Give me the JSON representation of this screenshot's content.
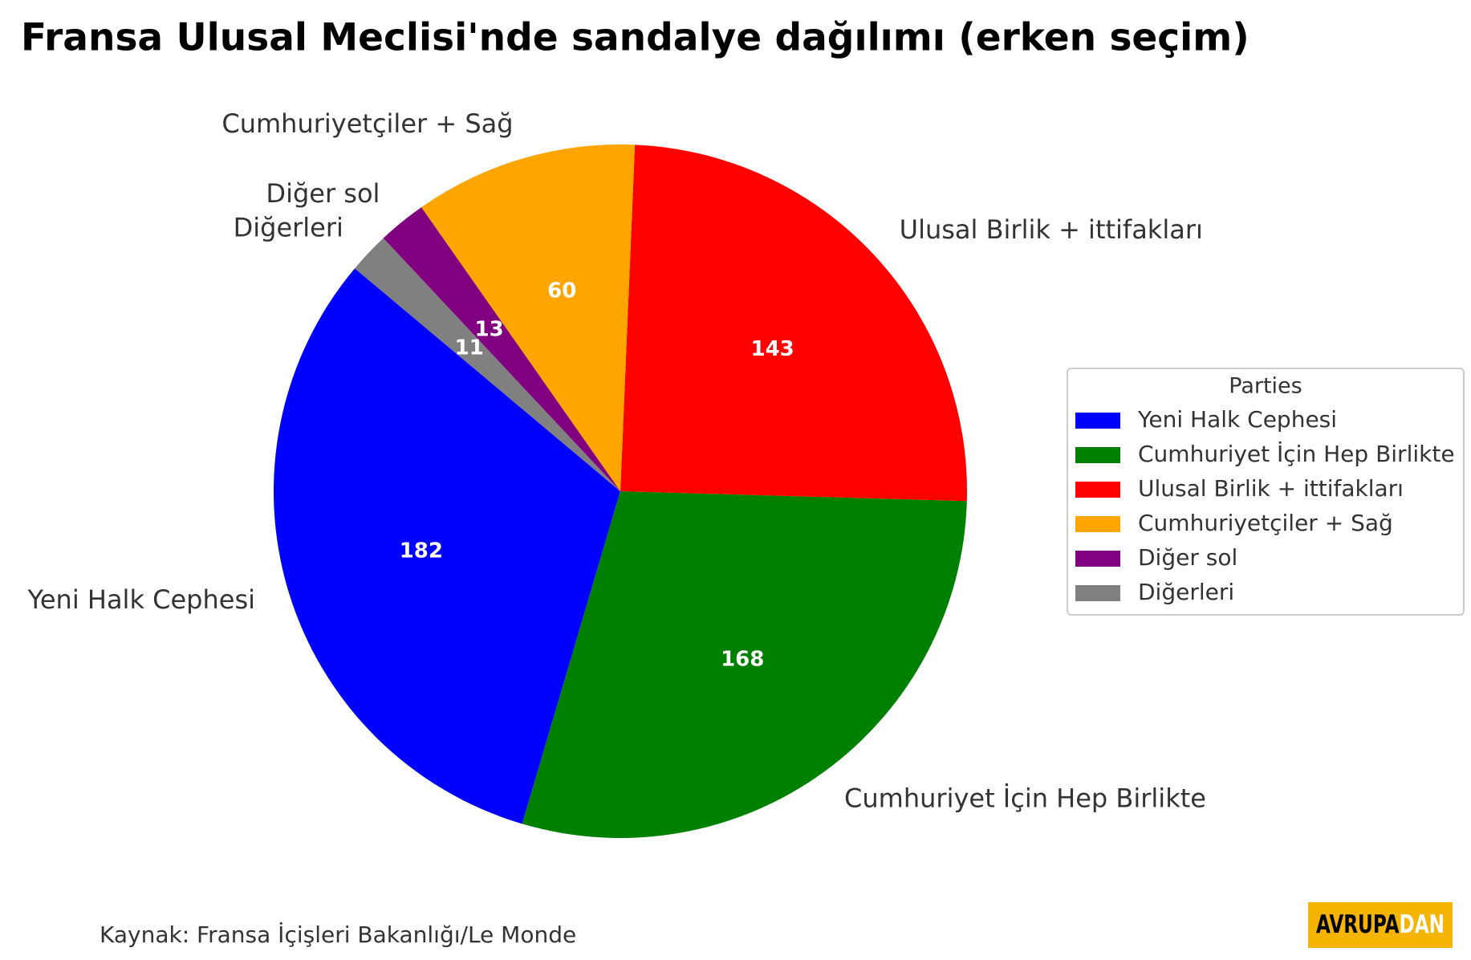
{
  "chart_data": {
    "type": "pie",
    "title": "Fransa Ulusal Meclisi'nde sandalye dağılımı (erken seçim)",
    "categories": [
      "Yeni Halk Cephesi",
      "Cumhuriyet İçin Hep Birlikte",
      "Ulusal Birlik + ittifakları",
      "Cumhuriyetçiler + Sağ",
      "Diğer sol",
      "Diğerleri"
    ],
    "values": [
      182,
      168,
      143,
      60,
      13,
      11
    ],
    "colors": [
      "#0000ff",
      "#008000",
      "#ff0000",
      "#ffa500",
      "#800080",
      "#808080"
    ],
    "start_angle": 140,
    "legend_title": "Parties",
    "legend_position": "right",
    "source": "Kaynak: Fransa İçişleri Bakanlığı/Le Monde",
    "logo": [
      "AVRUPA",
      "DAN"
    ]
  }
}
